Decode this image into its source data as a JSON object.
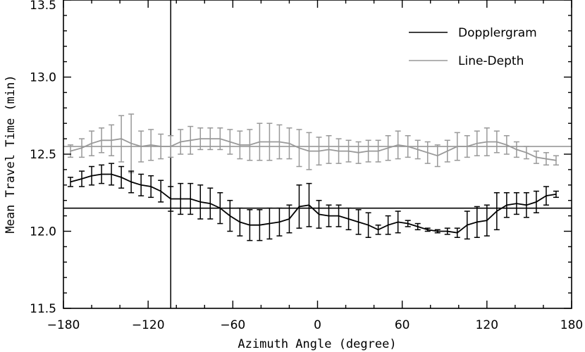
{
  "chart_data": {
    "type": "line",
    "title": "",
    "xlabel": "Azimuth Angle (degree)",
    "ylabel": "Mean Travel Time (min)",
    "xlim": [
      -180,
      180
    ],
    "ylim": [
      11.5,
      13.5
    ],
    "xticks": [
      -180,
      -120,
      -60,
      0,
      60,
      120,
      180
    ],
    "xtick_labels": [
      "−180",
      "−120",
      "−60",
      "0",
      "60",
      "120",
      "180"
    ],
    "yticks": [
      11.5,
      12.0,
      12.5,
      13.0,
      13.5
    ],
    "ytick_labels": [
      "11.5",
      "12.0",
      "12.5",
      "13.0",
      "13.5"
    ],
    "grid": false,
    "legend_position": "top-right",
    "x": [
      -175,
      -167,
      -160,
      -153,
      -146,
      -139,
      -132,
      -125,
      -118,
      -111,
      -104,
      -97,
      -90,
      -83,
      -76,
      -69,
      -62,
      -55,
      -48,
      -41,
      -34,
      -27,
      -20,
      -13,
      -6,
      1,
      8,
      15,
      22,
      29,
      36,
      43,
      50,
      57,
      64,
      71,
      78,
      85,
      92,
      99,
      106,
      113,
      120,
      127,
      134,
      141,
      148,
      155,
      162,
      169
    ],
    "series": [
      {
        "name": "Dopplergram",
        "color": "#000000",
        "values": [
          12.32,
          12.34,
          12.36,
          12.37,
          12.37,
          12.35,
          12.32,
          12.3,
          12.29,
          12.26,
          12.21,
          12.21,
          12.21,
          12.19,
          12.18,
          12.15,
          12.1,
          12.06,
          12.04,
          12.04,
          12.05,
          12.06,
          12.08,
          12.16,
          12.17,
          12.11,
          12.1,
          12.1,
          12.08,
          12.06,
          12.04,
          12.01,
          12.04,
          12.06,
          12.05,
          12.03,
          12.01,
          12.0,
          12.0,
          11.99,
          12.04,
          12.06,
          12.07,
          12.13,
          12.17,
          12.18,
          12.17,
          12.19,
          12.23,
          12.24
        ],
        "errors": [
          0.03,
          0.05,
          0.06,
          0.06,
          0.07,
          0.07,
          0.07,
          0.07,
          0.07,
          0.07,
          0.08,
          0.1,
          0.1,
          0.11,
          0.1,
          0.1,
          0.1,
          0.09,
          0.1,
          0.1,
          0.1,
          0.09,
          0.09,
          0.14,
          0.14,
          0.09,
          0.07,
          0.07,
          0.07,
          0.08,
          0.08,
          0.03,
          0.06,
          0.07,
          0.02,
          0.02,
          0.01,
          0.01,
          0.02,
          0.03,
          0.09,
          0.1,
          0.1,
          0.12,
          0.08,
          0.07,
          0.08,
          0.07,
          0.06,
          0.02
        ],
        "reference_line": 12.15
      },
      {
        "name": "Line-Depth",
        "color": "#999999",
        "values": [
          12.52,
          12.54,
          12.57,
          12.59,
          12.59,
          12.6,
          12.57,
          12.55,
          12.56,
          12.55,
          12.55,
          12.58,
          12.59,
          12.6,
          12.6,
          12.6,
          12.58,
          12.56,
          12.56,
          12.58,
          12.58,
          12.58,
          12.57,
          12.54,
          12.52,
          12.52,
          12.53,
          12.52,
          12.52,
          12.51,
          12.52,
          12.52,
          12.54,
          12.56,
          12.55,
          12.53,
          12.51,
          12.49,
          12.52,
          12.55,
          12.55,
          12.57,
          12.58,
          12.58,
          12.56,
          12.53,
          12.51,
          12.48,
          12.47,
          12.46
        ],
        "errors": [
          0.04,
          0.06,
          0.08,
          0.08,
          0.1,
          0.15,
          0.19,
          0.1,
          0.1,
          0.08,
          0.07,
          0.08,
          0.09,
          0.07,
          0.07,
          0.07,
          0.08,
          0.09,
          0.1,
          0.12,
          0.12,
          0.11,
          0.1,
          0.12,
          0.12,
          0.09,
          0.09,
          0.08,
          0.07,
          0.07,
          0.07,
          0.07,
          0.08,
          0.09,
          0.07,
          0.06,
          0.07,
          0.07,
          0.07,
          0.09,
          0.07,
          0.08,
          0.09,
          0.07,
          0.06,
          0.05,
          0.04,
          0.04,
          0.04,
          0.03
        ],
        "reference_line": 12.55
      }
    ],
    "vertical_marker_x": -104
  }
}
